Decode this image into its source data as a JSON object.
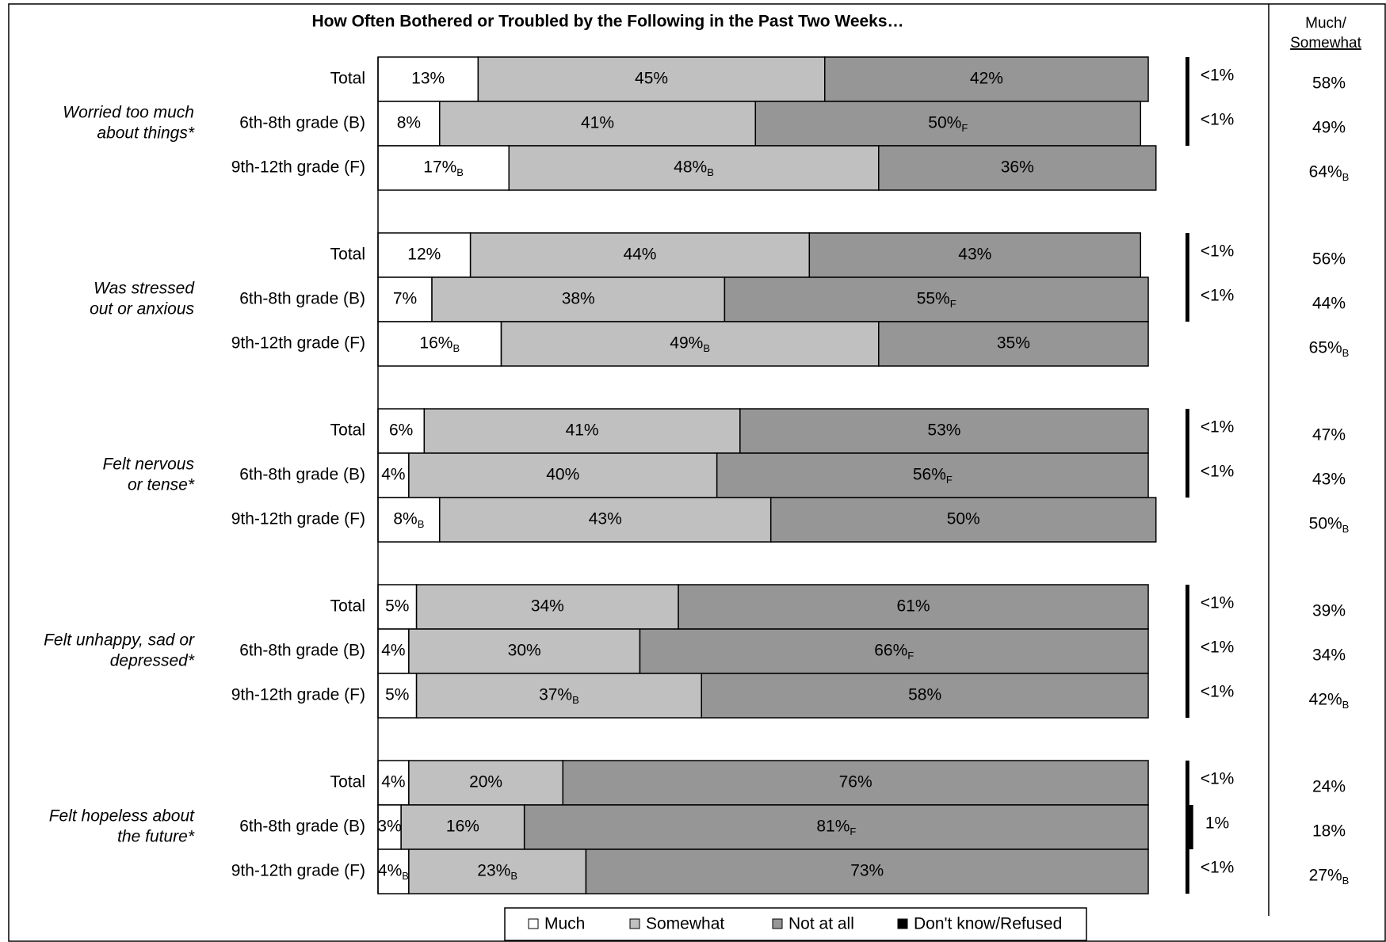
{
  "chart_data": {
    "type": "bar",
    "orientation": "horizontal",
    "stacked": true,
    "title": "How Often Bothered or Troubled by the Following in the Past Two Weeks…",
    "groups": [
      [
        "Worried too much",
        "about things*"
      ],
      [
        "Was stressed",
        "out or anxious"
      ],
      [
        "Felt nervous",
        "or tense*"
      ],
      [
        "Felt unhappy, sad or",
        "depressed*"
      ],
      [
        "Felt hopeless about",
        "the future*"
      ]
    ],
    "categories": [
      "Total",
      "6th-8th grade (B)",
      "9th-12th grade (F)",
      "Total",
      "6th-8th grade (B)",
      "9th-12th grade (F)",
      "Total",
      "6th-8th grade (B)",
      "9th-12th grade (F)",
      "Total",
      "6th-8th grade (B)",
      "9th-12th grade (F)",
      "Total",
      "6th-8th grade (B)",
      "9th-12th grade (F)"
    ],
    "xlim": [
      0,
      100
    ],
    "series": [
      {
        "name": "Much",
        "color": "#ffffff",
        "values": [
          13,
          8,
          17,
          12,
          7,
          16,
          6,
          4,
          8,
          5,
          4,
          5,
          4,
          3,
          4
        ],
        "value_labels": [
          "13%",
          "8%",
          "17%",
          "12%",
          "7%",
          "16%",
          "6%",
          "4%",
          "8%",
          "5%",
          "4%",
          "5%",
          "4%",
          "3%",
          "4%"
        ],
        "sig": [
          null,
          null,
          "B",
          null,
          null,
          "B",
          null,
          null,
          "B",
          null,
          null,
          null,
          null,
          null,
          "B"
        ]
      },
      {
        "name": "Somewhat",
        "color": "#c0c0c0",
        "values": [
          45,
          41,
          48,
          44,
          38,
          49,
          41,
          40,
          43,
          34,
          30,
          37,
          20,
          16,
          23
        ],
        "value_labels": [
          "45%",
          "41%",
          "48%",
          "44%",
          "38%",
          "49%",
          "41%",
          "40%",
          "43%",
          "34%",
          "30%",
          "37%",
          "20%",
          "16%",
          "23%"
        ],
        "sig": [
          null,
          null,
          "B",
          null,
          null,
          "B",
          null,
          null,
          null,
          null,
          null,
          "B",
          null,
          null,
          "B"
        ]
      },
      {
        "name": "Not at all",
        "color": "#969696",
        "values": [
          42,
          50,
          36,
          43,
          55,
          35,
          53,
          56,
          50,
          61,
          66,
          58,
          76,
          81,
          73
        ],
        "value_labels": [
          "42%",
          "50%",
          "36%",
          "43%",
          "55%",
          "35%",
          "53%",
          "56%",
          "50%",
          "61%",
          "66%",
          "58%",
          "76%",
          "81%",
          "73%"
        ],
        "sig": [
          null,
          "F",
          null,
          null,
          "F",
          null,
          null,
          "F",
          null,
          null,
          "F",
          null,
          null,
          "F",
          null
        ]
      },
      {
        "name": "Don't know/Refused",
        "color": "#000000",
        "values": [
          0.5,
          0.5,
          null,
          0.5,
          0.5,
          null,
          0.5,
          0.5,
          null,
          0.5,
          0.5,
          0.5,
          0.5,
          1,
          0.5
        ],
        "value_labels": [
          "<1%",
          "<1%",
          null,
          "<1%",
          "<1%",
          null,
          "<1%",
          "<1%",
          null,
          "<1%",
          "<1%",
          "<1%",
          "<1%",
          "1%",
          "<1%"
        ]
      }
    ],
    "summary": {
      "title": [
        "Much/",
        "Somewhat"
      ],
      "values": [
        58,
        49,
        64,
        56,
        44,
        65,
        47,
        43,
        50,
        39,
        34,
        42,
        24,
        18,
        27
      ],
      "value_labels": [
        "58%",
        "49%",
        "64%",
        "56%",
        "44%",
        "65%",
        "47%",
        "43%",
        "50%",
        "39%",
        "34%",
        "42%",
        "24%",
        "18%",
        "27%"
      ],
      "sig": [
        null,
        null,
        "B",
        null,
        null,
        "B",
        null,
        null,
        "B",
        null,
        null,
        "B",
        null,
        null,
        "B"
      ]
    }
  }
}
